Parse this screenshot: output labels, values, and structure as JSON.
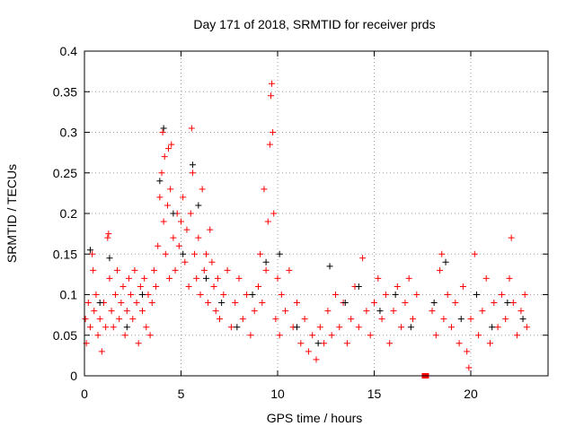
{
  "chart_data": {
    "type": "scatter",
    "title": "Day 171 of 2018, SRMTID for receiver prds",
    "xlabel": "GPS time / hours",
    "ylabel": "SRMTID / TECUs",
    "xlim": [
      0,
      24
    ],
    "ylim": [
      0,
      0.4
    ],
    "xticks": [
      "0",
      "5",
      "10",
      "15",
      "20"
    ],
    "xtick_values": [
      0,
      5,
      10,
      15,
      20
    ],
    "yticks": [
      "0",
      "0.05",
      "0.1",
      "0.15",
      "0.2",
      "0.25",
      "0.3",
      "0.35",
      "0.4"
    ],
    "ytick_values": [
      0,
      0.05,
      0.1,
      0.15,
      0.2,
      0.25,
      0.3,
      0.35,
      0.4
    ],
    "grid": true,
    "colors": {
      "red": "#ff0000",
      "black": "#000000",
      "grid": "#a0a0a0"
    },
    "series": [
      {
        "name": "red",
        "color": "#ff0000",
        "points": [
          [
            0.05,
            0.07
          ],
          [
            0.1,
            0.04
          ],
          [
            0.2,
            0.09
          ],
          [
            0.3,
            0.06
          ],
          [
            0.4,
            0.15
          ],
          [
            0.45,
            0.13
          ],
          [
            0.5,
            0.08
          ],
          [
            0.6,
            0.1
          ],
          [
            0.7,
            0.05
          ],
          [
            0.8,
            0.07
          ],
          [
            0.9,
            0.03
          ],
          [
            1.0,
            0.09
          ],
          [
            1.1,
            0.06
          ],
          [
            1.2,
            0.17
          ],
          [
            1.25,
            0.175
          ],
          [
            1.3,
            0.12
          ],
          [
            1.4,
            0.08
          ],
          [
            1.5,
            0.06
          ],
          [
            1.6,
            0.1
          ],
          [
            1.7,
            0.13
          ],
          [
            1.8,
            0.07
          ],
          [
            1.9,
            0.09
          ],
          [
            2.0,
            0.11
          ],
          [
            2.1,
            0.05
          ],
          [
            2.2,
            0.08
          ],
          [
            2.3,
            0.12
          ],
          [
            2.4,
            0.1
          ],
          [
            2.5,
            0.07
          ],
          [
            2.6,
            0.13
          ],
          [
            2.7,
            0.09
          ],
          [
            2.8,
            0.04
          ],
          [
            2.9,
            0.11
          ],
          [
            3.0,
            0.08
          ],
          [
            3.1,
            0.12
          ],
          [
            3.2,
            0.06
          ],
          [
            3.3,
            0.1
          ],
          [
            3.4,
            0.05
          ],
          [
            3.5,
            0.09
          ],
          [
            3.6,
            0.13
          ],
          [
            3.7,
            0.11
          ],
          [
            3.8,
            0.16
          ],
          [
            3.9,
            0.22
          ],
          [
            4.0,
            0.25
          ],
          [
            4.05,
            0.3
          ],
          [
            4.1,
            0.19
          ],
          [
            4.15,
            0.27
          ],
          [
            4.2,
            0.15
          ],
          [
            4.3,
            0.21
          ],
          [
            4.35,
            0.28
          ],
          [
            4.4,
            0.12
          ],
          [
            4.45,
            0.23
          ],
          [
            4.5,
            0.285
          ],
          [
            4.6,
            0.17
          ],
          [
            4.7,
            0.13
          ],
          [
            4.8,
            0.2
          ],
          [
            4.9,
            0.16
          ],
          [
            5.0,
            0.19
          ],
          [
            5.1,
            0.22
          ],
          [
            5.2,
            0.14
          ],
          [
            5.3,
            0.18
          ],
          [
            5.4,
            0.11
          ],
          [
            5.5,
            0.2
          ],
          [
            5.55,
            0.305
          ],
          [
            5.6,
            0.25
          ],
          [
            5.7,
            0.15
          ],
          [
            5.8,
            0.12
          ],
          [
            5.9,
            0.17
          ],
          [
            6.0,
            0.1
          ],
          [
            6.1,
            0.23
          ],
          [
            6.2,
            0.13
          ],
          [
            6.3,
            0.15
          ],
          [
            6.4,
            0.09
          ],
          [
            6.5,
            0.18
          ],
          [
            6.6,
            0.14
          ],
          [
            6.7,
            0.11
          ],
          [
            6.8,
            0.08
          ],
          [
            6.9,
            0.12
          ],
          [
            7.0,
            0.07
          ],
          [
            7.2,
            0.1
          ],
          [
            7.4,
            0.13
          ],
          [
            7.6,
            0.06
          ],
          [
            7.8,
            0.09
          ],
          [
            8.0,
            0.12
          ],
          [
            8.2,
            0.07
          ],
          [
            8.4,
            0.1
          ],
          [
            8.6,
            0.05
          ],
          [
            8.8,
            0.08
          ],
          [
            9.0,
            0.11
          ],
          [
            9.1,
            0.15
          ],
          [
            9.2,
            0.09
          ],
          [
            9.3,
            0.23
          ],
          [
            9.4,
            0.13
          ],
          [
            9.5,
            0.19
          ],
          [
            9.6,
            0.285
          ],
          [
            9.65,
            0.345
          ],
          [
            9.7,
            0.36
          ],
          [
            9.75,
            0.3
          ],
          [
            9.8,
            0.2
          ],
          [
            9.9,
            0.07
          ],
          [
            10.0,
            0.12
          ],
          [
            10.1,
            0.05
          ],
          [
            10.2,
            0.1
          ],
          [
            10.4,
            0.08
          ],
          [
            10.6,
            0.13
          ],
          [
            10.8,
            0.06
          ],
          [
            11.0,
            0.09
          ],
          [
            11.2,
            0.04
          ],
          [
            11.4,
            0.07
          ],
          [
            11.6,
            0.03
          ],
          [
            11.8,
            0.05
          ],
          [
            12.0,
            0.02
          ],
          [
            12.2,
            0.06
          ],
          [
            12.4,
            0.04
          ],
          [
            12.6,
            0.08
          ],
          [
            12.8,
            0.05
          ],
          [
            13.0,
            0.1
          ],
          [
            13.2,
            0.06
          ],
          [
            13.4,
            0.09
          ],
          [
            13.6,
            0.04
          ],
          [
            13.8,
            0.07
          ],
          [
            14.0,
            0.11
          ],
          [
            14.2,
            0.06
          ],
          [
            14.4,
            0.145
          ],
          [
            14.6,
            0.08
          ],
          [
            14.8,
            0.05
          ],
          [
            15.0,
            0.09
          ],
          [
            15.2,
            0.12
          ],
          [
            15.4,
            0.07
          ],
          [
            15.6,
            0.1
          ],
          [
            15.8,
            0.04
          ],
          [
            16.0,
            0.08
          ],
          [
            16.2,
            0.11
          ],
          [
            16.4,
            0.06
          ],
          [
            16.6,
            0.09
          ],
          [
            16.8,
            0.12
          ],
          [
            17.0,
            0.07
          ],
          [
            17.2,
            0.1
          ],
          [
            18.0,
            0.08
          ],
          [
            18.2,
            0.05
          ],
          [
            18.4,
            0.13
          ],
          [
            18.5,
            0.15
          ],
          [
            18.6,
            0.07
          ],
          [
            18.8,
            0.1
          ],
          [
            19.0,
            0.06
          ],
          [
            19.2,
            0.09
          ],
          [
            19.4,
            0.04
          ],
          [
            19.6,
            0.11
          ],
          [
            19.8,
            0.03
          ],
          [
            19.9,
            0.01
          ],
          [
            20.0,
            0.07
          ],
          [
            20.2,
            0.15
          ],
          [
            20.4,
            0.05
          ],
          [
            20.6,
            0.08
          ],
          [
            20.8,
            0.12
          ],
          [
            21.0,
            0.04
          ],
          [
            21.2,
            0.09
          ],
          [
            21.4,
            0.06
          ],
          [
            21.6,
            0.1
          ],
          [
            21.8,
            0.07
          ],
          [
            22.0,
            0.12
          ],
          [
            22.1,
            0.17
          ],
          [
            22.2,
            0.09
          ],
          [
            22.4,
            0.05
          ],
          [
            22.6,
            0.08
          ],
          [
            22.8,
            0.1
          ],
          [
            22.9,
            0.06
          ]
        ]
      },
      {
        "name": "black",
        "color": "#000000",
        "points": [
          [
            0.3,
            0.155
          ],
          [
            0.8,
            0.09
          ],
          [
            1.3,
            0.145
          ],
          [
            2.2,
            0.06
          ],
          [
            3.0,
            0.1
          ],
          [
            3.9,
            0.24
          ],
          [
            4.1,
            0.305
          ],
          [
            4.6,
            0.2
          ],
          [
            5.1,
            0.15
          ],
          [
            5.6,
            0.26
          ],
          [
            5.9,
            0.21
          ],
          [
            6.3,
            0.12
          ],
          [
            7.1,
            0.09
          ],
          [
            7.9,
            0.06
          ],
          [
            8.7,
            0.1
          ],
          [
            9.4,
            0.14
          ],
          [
            10.1,
            0.15
          ],
          [
            11.0,
            0.06
          ],
          [
            12.1,
            0.04
          ],
          [
            12.7,
            0.135
          ],
          [
            13.5,
            0.09
          ],
          [
            14.2,
            0.11
          ],
          [
            15.3,
            0.08
          ],
          [
            16.1,
            0.1
          ],
          [
            16.9,
            0.06
          ],
          [
            18.1,
            0.09
          ],
          [
            18.7,
            0.14
          ],
          [
            19.5,
            0.07
          ],
          [
            20.3,
            0.1
          ],
          [
            21.1,
            0.06
          ],
          [
            21.9,
            0.09
          ],
          [
            22.7,
            0.07
          ]
        ]
      },
      {
        "name": "marker",
        "color": "#ff0000",
        "points": [
          [
            17.65,
            0
          ]
        ]
      }
    ]
  }
}
